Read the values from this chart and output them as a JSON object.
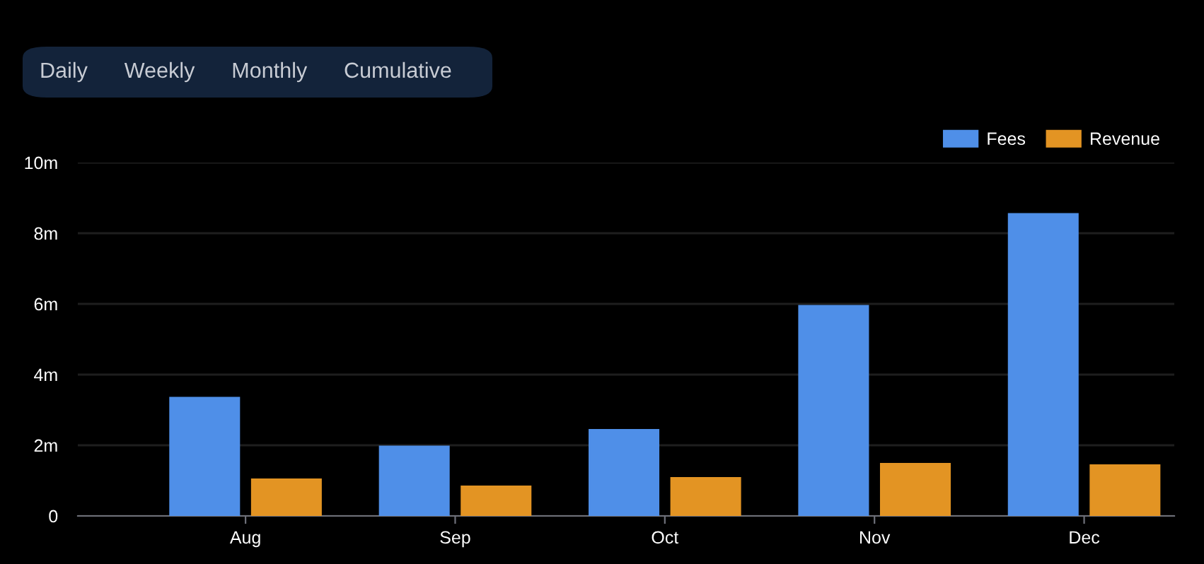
{
  "chart_data": {
    "type": "bar",
    "categories": [
      "Aug",
      "Sep",
      "Oct",
      "Nov",
      "Dec"
    ],
    "series": [
      {
        "name": "Fees",
        "color": "#4f8fe8",
        "values": [
          3.35,
          1.97,
          2.44,
          5.95,
          8.55
        ]
      },
      {
        "name": "Revenue",
        "color": "#e39423",
        "values": [
          1.04,
          0.84,
          1.08,
          1.48,
          1.44
        ]
      }
    ],
    "ylim": [
      0,
      10
    ],
    "yticks": [
      0,
      {
        "value": 2,
        "label": "2m"
      },
      {
        "value": 4,
        "label": "4m"
      },
      {
        "value": 6,
        "label": "6m"
      },
      {
        "value": 8,
        "label": "8m"
      },
      {
        "value": 10,
        "label": "10m"
      }
    ],
    "grid": "y",
    "legend": "top right",
    "annotations": [
      "Daily",
      "Weekly",
      "Monthly",
      "Cumulative"
    ]
  }
}
